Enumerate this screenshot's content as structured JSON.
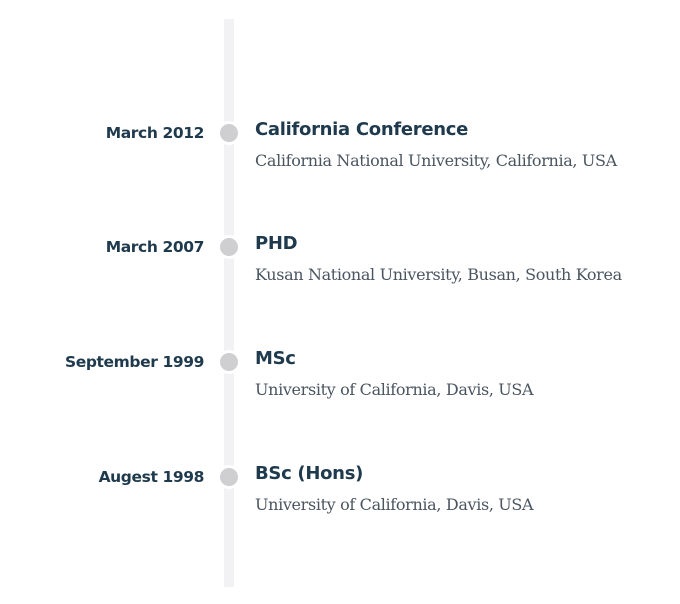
{
  "timeline": {
    "entries": [
      {
        "date": "March 2012",
        "title": "California Conference",
        "subtitle": "California National University, California, USA"
      },
      {
        "date": "March 2007",
        "title": "PHD",
        "subtitle": "Kusan National University, Busan, South Korea"
      },
      {
        "date": "September 1999",
        "title": "MSc",
        "subtitle": "University of California, Davis, USA"
      },
      {
        "date": "Augest 1998",
        "title": "BSc (Hons)",
        "subtitle": "University of California, Davis, USA"
      }
    ]
  },
  "colors": {
    "text_dark": "#1f3a4d",
    "text_body": "#4a5560",
    "track": "#f2f2f4",
    "dot": "#cfcfd2"
  }
}
